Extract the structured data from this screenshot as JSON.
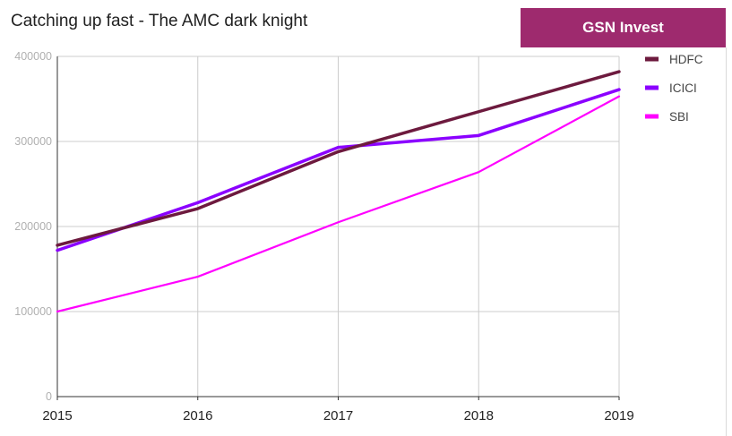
{
  "title": "Catching up fast - The AMC dark knight",
  "brand": {
    "label": "GSN Invest",
    "color": "#9e2a6e"
  },
  "chart_data": {
    "type": "line",
    "title": "Catching up fast - The AMC dark knight",
    "xlabel": "",
    "ylabel": "",
    "x": [
      "2015",
      "2016",
      "2017",
      "2018",
      "2019"
    ],
    "y_ticks": [
      "0",
      "100000",
      "200000",
      "300000",
      "400000"
    ],
    "ylim": [
      0,
      400000
    ],
    "grid": true,
    "legend_position": "right",
    "series": [
      {
        "name": "HDFC",
        "color": "#6d1a3e",
        "values": [
          178000,
          221000,
          288000,
          335000,
          382000
        ]
      },
      {
        "name": "ICICI",
        "color": "#8b00ff",
        "values": [
          172000,
          228000,
          293000,
          307000,
          361000
        ]
      },
      {
        "name": "SBI",
        "color": "#ff00ff",
        "values": [
          100000,
          141000,
          205000,
          264000,
          353000
        ]
      }
    ]
  }
}
